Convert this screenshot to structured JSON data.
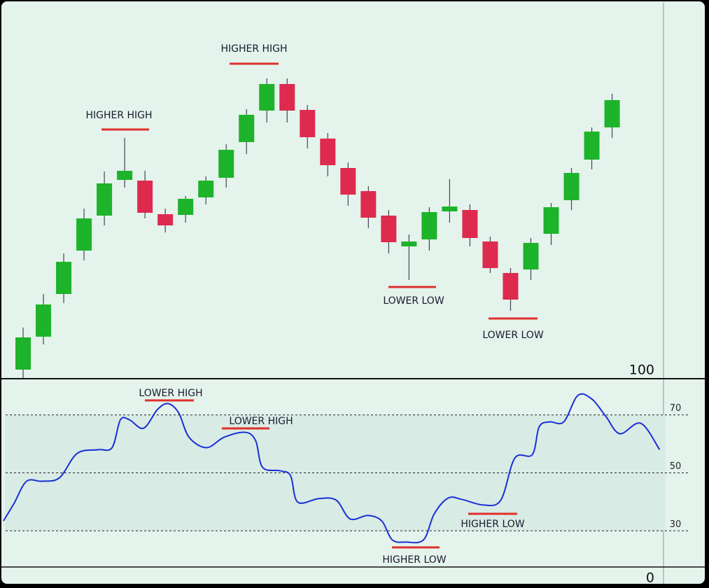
{
  "chart_data": [
    {
      "type": "candlestick",
      "x": [
        0,
        1,
        2,
        3,
        4,
        5,
        6,
        7,
        8,
        9,
        10,
        11,
        12,
        13,
        14,
        15,
        16,
        17,
        18,
        19,
        20,
        21,
        22,
        23,
        24,
        25,
        26,
        27,
        28,
        29
      ],
      "open": [
        12,
        59,
        120,
        182,
        232,
        283,
        282,
        234,
        233,
        258,
        286,
        337,
        382,
        420,
        383,
        342,
        300,
        267,
        232,
        188,
        198,
        238,
        240,
        195,
        150,
        155,
        206,
        254,
        312,
        358
      ],
      "close": [
        58,
        105,
        166,
        228,
        278,
        296,
        236,
        218,
        256,
        282,
        326,
        376,
        420,
        382,
        344,
        304,
        262,
        229,
        194,
        195,
        237,
        245,
        200,
        157,
        112,
        193,
        244,
        293,
        352,
        397
      ],
      "high": [
        72,
        120,
        178,
        242,
        295,
        343,
        296,
        242,
        260,
        288,
        334,
        384,
        428,
        428,
        390,
        350,
        308,
        274,
        240,
        205,
        244,
        284,
        248,
        202,
        157,
        200,
        250,
        300,
        358,
        406
      ],
      "low": [
        0,
        48,
        107,
        168,
        218,
        272,
        228,
        208,
        222,
        248,
        272,
        320,
        365,
        365,
        328,
        288,
        246,
        214,
        178,
        140,
        182,
        222,
        188,
        150,
        96,
        140,
        190,
        240,
        298,
        343
      ],
      "xlim": [
        -1,
        31.6
      ],
      "ylim": [
        0,
        535
      ],
      "up_color": "#1db32a",
      "down_color": "#de2a4e",
      "annotations": [
        "HIGHER HIGH",
        "HIGHER HIGH",
        "LOWER LOW",
        "LOWER LOW"
      ]
    },
    {
      "type": "line",
      "x": [
        -0.97,
        -0.45,
        0.17,
        0.93,
        1.79,
        2.66,
        3.69,
        4.38,
        4.79,
        5.24,
        5.93,
        6.62,
        7.14,
        7.66,
        8.17,
        9.03,
        9.9,
        10.93,
        11.45,
        11.79,
        12.66,
        13.17,
        13.52,
        14.55,
        15.41,
        16.1,
        16.97,
        17.66,
        18.17,
        18.86,
        19.72,
        20.24,
        20.93,
        21.62,
        22.66,
        23.52,
        24.21,
        25.07,
        25.41,
        25.93,
        26.62,
        27.31,
        28.0,
        28.69,
        29.38,
        30.41,
        31.34
      ],
      "series": [
        {
          "color": "#1a2fd6",
          "values": [
            33.4,
            39.4,
            47.1,
            47.1,
            48.3,
            56.7,
            58.0,
            58.7,
            68.3,
            68.3,
            65.4,
            71.9,
            73.9,
            70.7,
            62.3,
            58.7,
            62.3,
            64.0,
            61.1,
            51.9,
            50.7,
            49.0,
            39.9,
            41.1,
            40.6,
            34.1,
            35.3,
            33.4,
            26.9,
            26.1,
            26.9,
            35.8,
            41.3,
            40.8,
            38.9,
            40.6,
            55.1,
            56.3,
            65.9,
            67.6,
            67.6,
            76.7,
            75.5,
            69.5,
            63.5,
            67.1,
            58.0
          ]
        }
      ],
      "xlim": [
        -1,
        31.6
      ],
      "ylim": [
        17.5,
        82.5
      ],
      "yticks": [
        30,
        50,
        70
      ],
      "top_label": "100",
      "bottom_label": "0",
      "annotations": [
        "LOWER HIGH",
        "LOWER HIGH",
        "HIGHER LOW",
        "HIGHER LOW"
      ]
    }
  ]
}
